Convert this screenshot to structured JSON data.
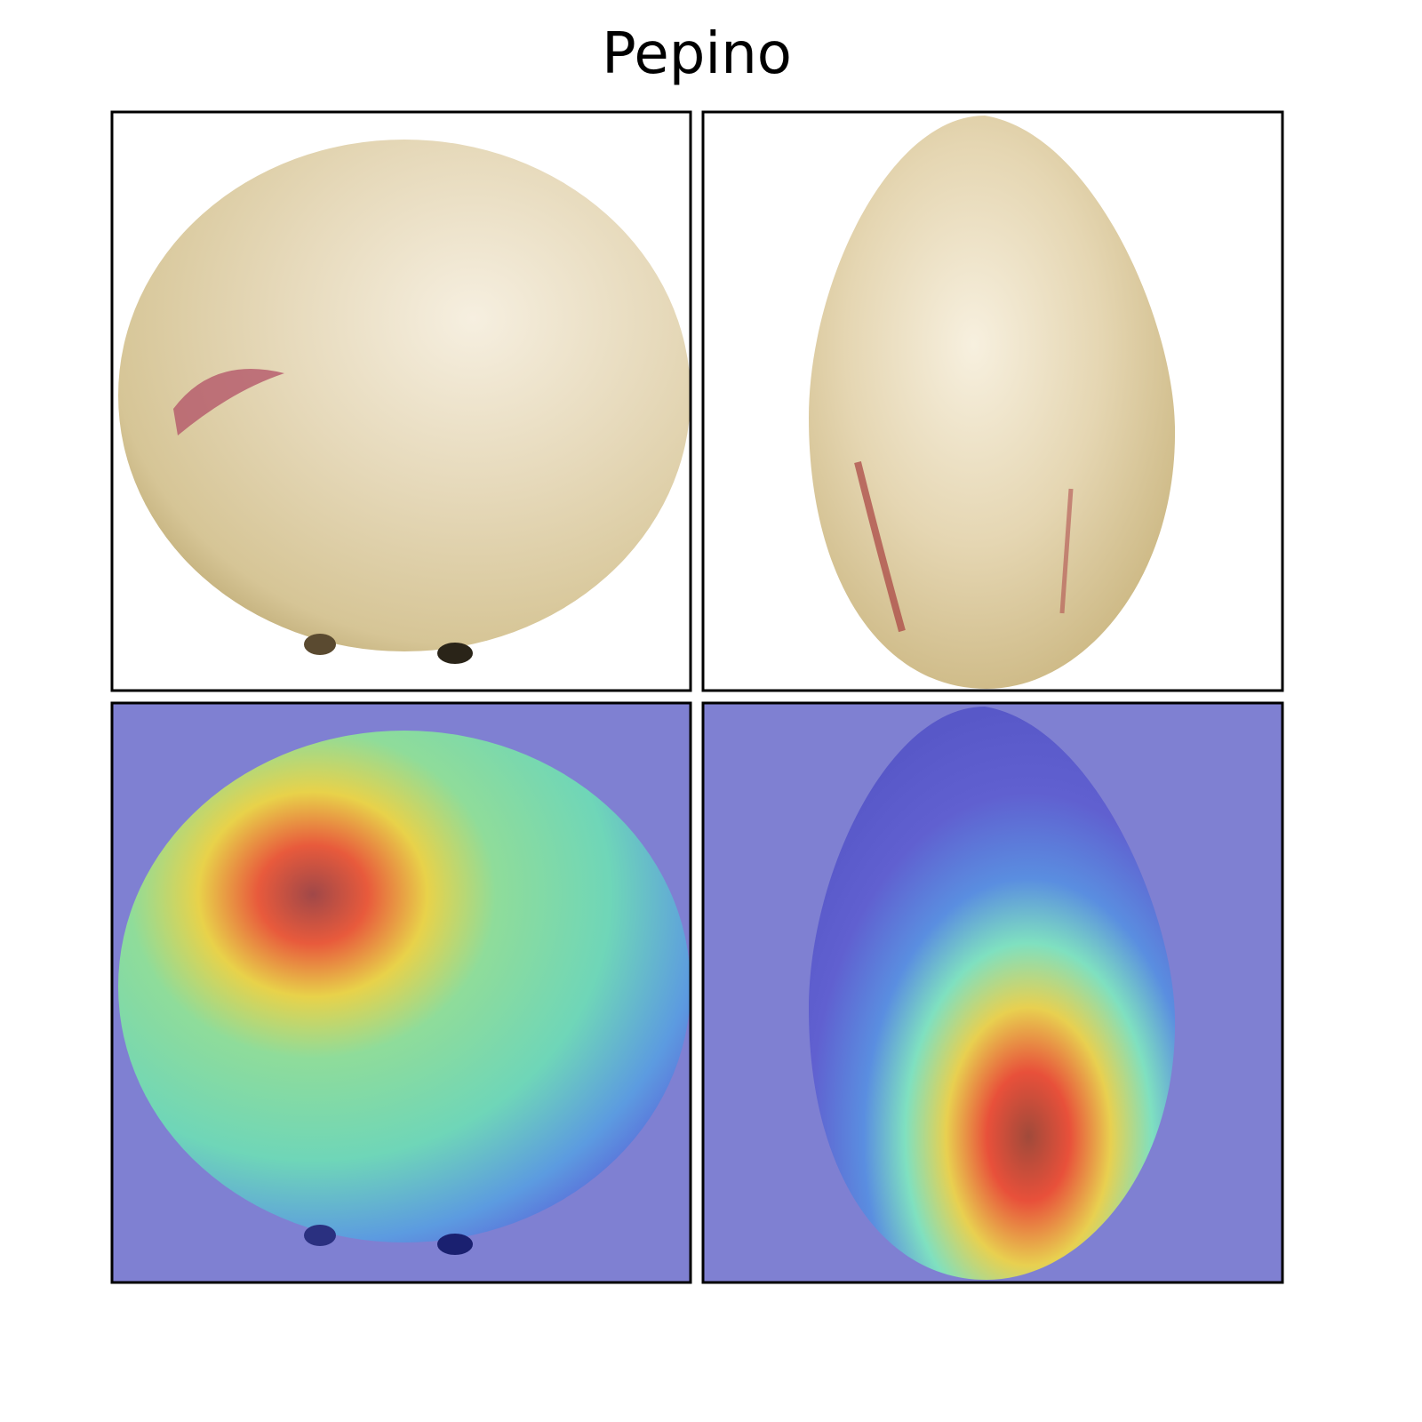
{
  "title": "Pepino"
}
